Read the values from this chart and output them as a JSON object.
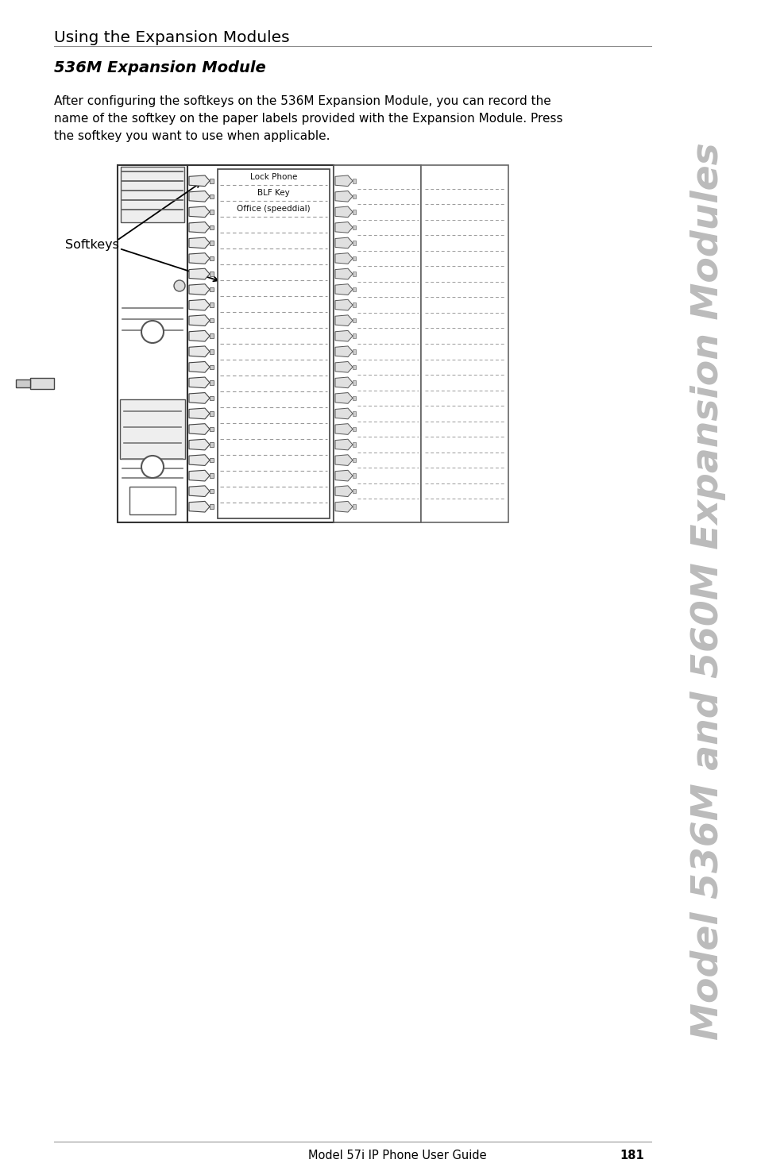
{
  "title": "Using the Expansion Modules",
  "subtitle": "536M Expansion Module",
  "body_text": "After configuring the softkeys on the 536M Expansion Module, you can record the\nname of the softkey on the paper labels provided with the Expansion Module. Press\nthe softkey you want to use when applicable.",
  "side_text": "Model 536M and 560M Expansion Modules",
  "footer_text": "Model 57i IP Phone User Guide",
  "page_number": "181",
  "softkeys_label": "Softkeys",
  "label1": "Lock Phone",
  "label2": "BLF Key",
  "label3": "Office (speeddial)",
  "bg_color": "#ffffff",
  "text_color": "#000000",
  "side_text_color": "#bbbbbb",
  "diagram_line_color": "#333333",
  "diagram_fill": "#f5f5f5",
  "dashed_color": "#999999"
}
